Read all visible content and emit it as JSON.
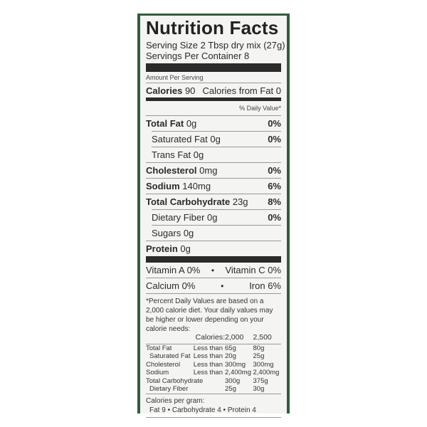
{
  "title": "Nutrition Facts",
  "serving_size": "Serving Size 2 Tbsp dry mix (27g)",
  "servings_per_container": "Servings Per Container 8",
  "amount_per_serving": "Amount Per Serving",
  "calories": {
    "label": "Calories",
    "value": "90",
    "from_fat": "Calories from Fat 0"
  },
  "daily_value_header": "% Daily Value*",
  "nutrients": [
    {
      "label": "Total Fat",
      "amount": "0g",
      "dv": "0%",
      "bold": true
    },
    {
      "label": "Saturated Fat",
      "amount": "0g",
      "dv": "0%",
      "bold": false
    },
    {
      "label": "Trans Fat",
      "amount": "0g",
      "dv": "",
      "bold": false
    },
    {
      "label": "Cholesterol",
      "amount": "0mg",
      "dv": "0%",
      "bold": true
    },
    {
      "label": "Sodium",
      "amount": "140mg",
      "dv": "6%",
      "bold": true
    },
    {
      "label": "Total Carbohydrate",
      "amount": "23g",
      "dv": "8%",
      "bold": true
    },
    {
      "label": "Dietary Fiber",
      "amount": "0g",
      "dv": "0%",
      "bold": false
    },
    {
      "label": "Sugars",
      "amount": "0g",
      "dv": "",
      "bold": false
    },
    {
      "label": "Protein",
      "amount": "0g",
      "dv": "",
      "bold": true
    }
  ],
  "vitamins": [
    {
      "left": "Vitamin A 0%",
      "right": "Vitamin C 0%"
    },
    {
      "left": "Calcium 0%",
      "right": "Iron 6%"
    }
  ],
  "bullet": "•",
  "footnote": "*Percent Daily Values are based on a 2,000 calorie diet. Your daily values may be higher or lower depending on your calorie needs:",
  "dv_table": {
    "header": [
      "",
      "Calories:",
      "2,000",
      "2,500"
    ],
    "rows": [
      [
        "Total Fat",
        "Less than",
        "65g",
        "80g"
      ],
      [
        "Saturated Fat",
        "Less than",
        "20g",
        "25g"
      ],
      [
        "Cholesterol",
        "Less than",
        "300mg",
        "300mg"
      ],
      [
        "Sodium",
        "Less than",
        "2,400mg",
        "2,400mg"
      ],
      [
        "Total Carbohydrate",
        "",
        "300g",
        "375g"
      ],
      [
        "Dietary Fiber",
        "",
        "25g",
        "30g"
      ]
    ]
  },
  "calories_per_gram": "Calories per gram:",
  "per_gram": "Fat 9 • Carbohydrate 4 • Protein 4",
  "colors": {
    "border": "#2f5e3c",
    "bar": "#2b2b2b",
    "background": "#f4f4f2"
  }
}
